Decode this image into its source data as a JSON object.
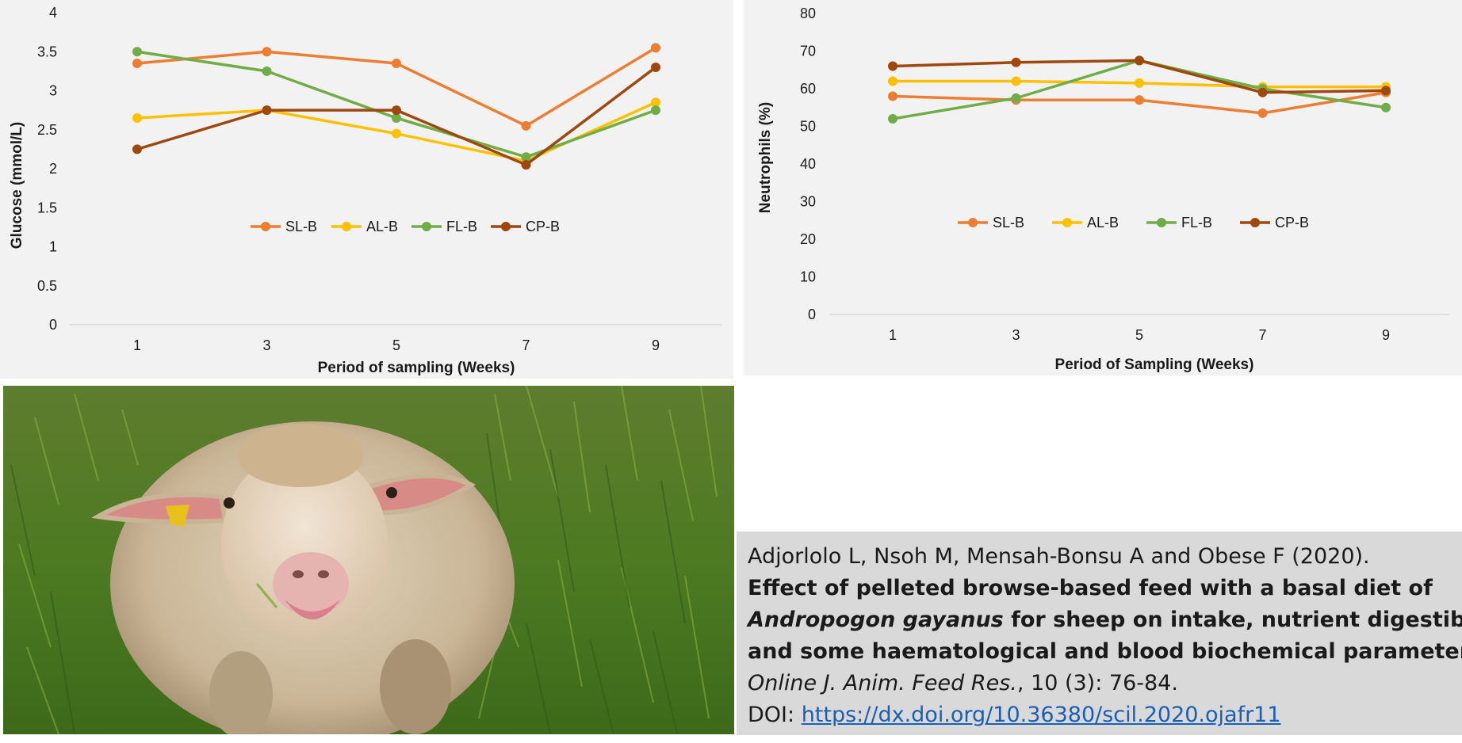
{
  "colors": {
    "SL-B": "#ed7d31",
    "AL-B": "#ffc000",
    "FL-B": "#70ad47",
    "CP-B": "#9e480e"
  },
  "chart_data": [
    {
      "type": "line",
      "ylabel": "Glucose (mmol/L)",
      "xlabel": "Period of sampling (Weeks)",
      "categories": [
        "1",
        "3",
        "5",
        "7",
        "9"
      ],
      "ylim": [
        0,
        4
      ],
      "yticks": [
        "0",
        "0.5",
        "1",
        "1.5",
        "2",
        "2.5",
        "3",
        "3.5",
        "4"
      ],
      "legend_position": "center",
      "series": [
        {
          "name": "SL-B",
          "values": [
            3.35,
            3.5,
            3.35,
            2.55,
            3.55
          ]
        },
        {
          "name": "AL-B",
          "values": [
            2.65,
            2.75,
            2.45,
            2.1,
            2.85
          ]
        },
        {
          "name": "FL-B",
          "values": [
            3.5,
            3.25,
            2.65,
            2.15,
            2.75
          ]
        },
        {
          "name": "CP-B",
          "values": [
            2.25,
            2.75,
            2.75,
            2.05,
            3.3
          ]
        }
      ]
    },
    {
      "type": "line",
      "ylabel": "Neutrophils (%)",
      "xlabel": "Period of Sampling (Weeks)",
      "categories": [
        "1",
        "3",
        "5",
        "7",
        "9"
      ],
      "ylim": [
        0,
        80
      ],
      "yticks": [
        "0",
        "10",
        "20",
        "30",
        "40",
        "50",
        "60",
        "70",
        "80"
      ],
      "legend_position": "center",
      "series": [
        {
          "name": "SL-B",
          "values": [
            58,
            57,
            57,
            53.5,
            59
          ]
        },
        {
          "name": "AL-B",
          "values": [
            62,
            62,
            61.5,
            60.5,
            60.5
          ]
        },
        {
          "name": "FL-B",
          "values": [
            52,
            57.5,
            67.5,
            60,
            55
          ]
        },
        {
          "name": "CP-B",
          "values": [
            66,
            67,
            67.5,
            59,
            59.5
          ]
        }
      ]
    }
  ],
  "citation": {
    "authors": "Adjorlolo L, Nsoh M, Mensah-Bonsu  A and Obese F (2020).",
    "title_line1": "Effect of pelleted browse-based feed with a basal diet of",
    "title_species": "Andropogon  gayanus",
    "title_line2_rest": " for sheep on intake, nutrient digestibility",
    "title_line3": "and some haematological and blood biochemical parameters.",
    "journal": "Online J. Anim. Feed Res.",
    "volume_pages": ", 10 (3): 76-84.",
    "doi_label": "DOI: ",
    "doi_url": "https://dx.doi.org/10.36380/scil.2020.ojafr11"
  }
}
